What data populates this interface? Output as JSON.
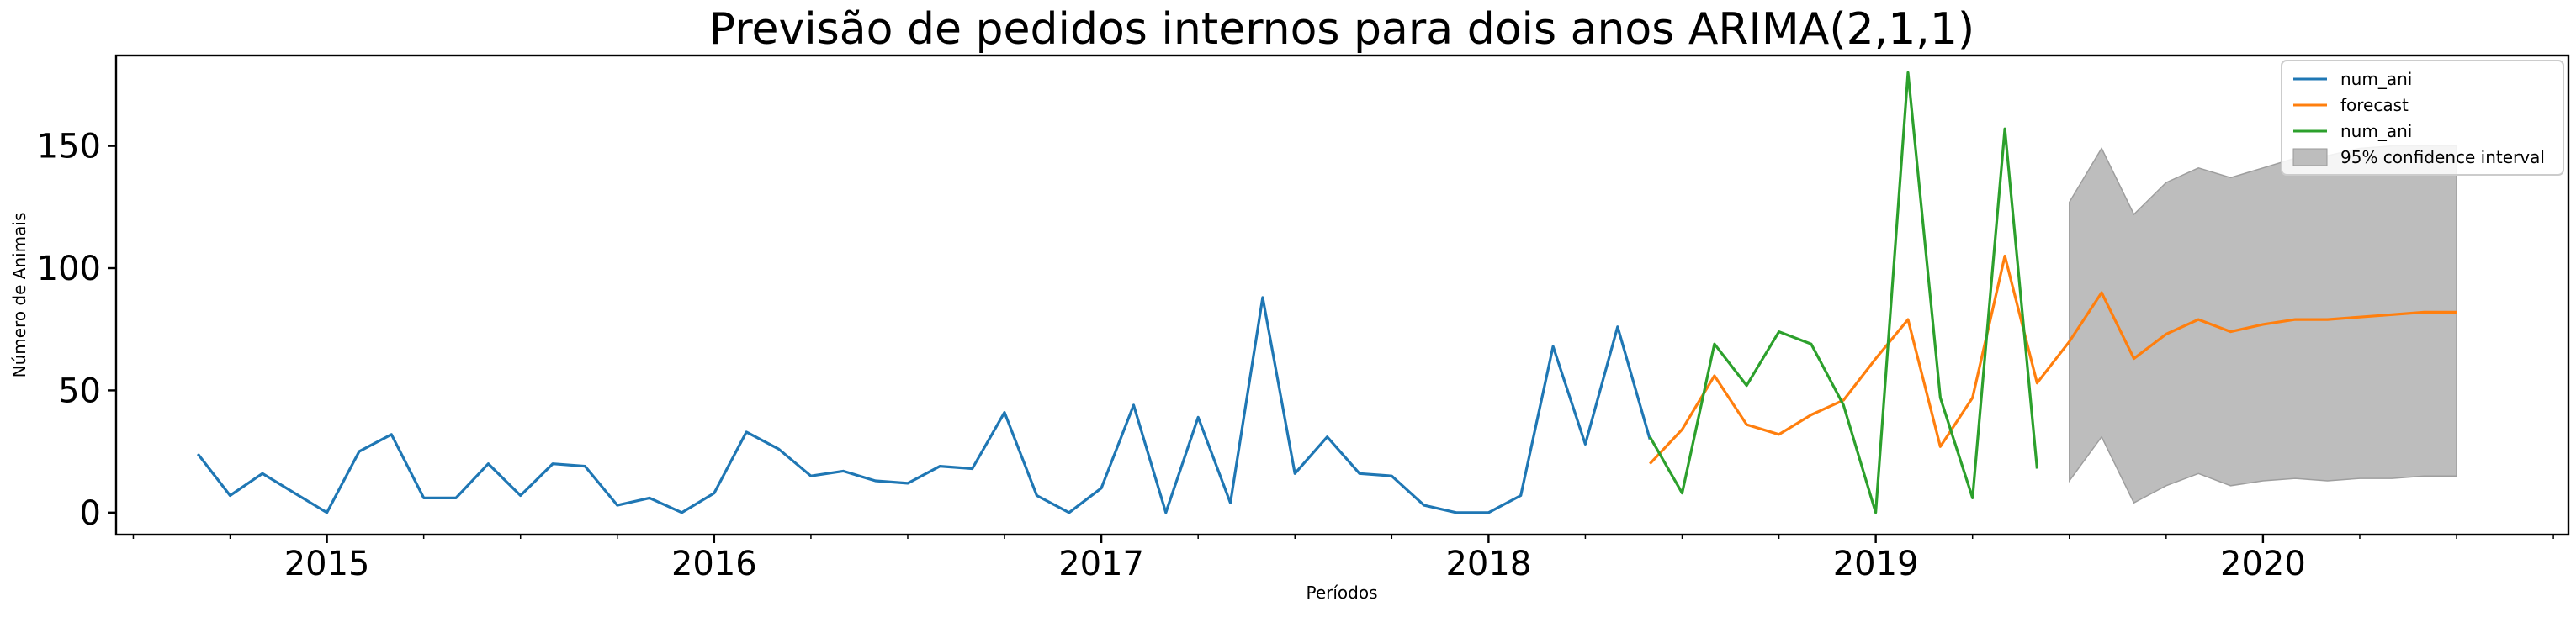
{
  "chart_data": {
    "type": "line",
    "title": "Previsão de pedidos internos para dois anos ARIMA(2,1,1)",
    "xlabel": "Períodos",
    "ylabel": "Número de Animais",
    "x_ticks": [
      "2015",
      "2016",
      "2017",
      "2018",
      "2019",
      "2020"
    ],
    "y_ticks": [
      0,
      50,
      100,
      150
    ],
    "xlim": [
      "2014-06-15",
      "2020-10-15"
    ],
    "ylim": [
      -9,
      187
    ],
    "legend_position": "top-right",
    "colors": {
      "num_ani_1": "#1f77b4",
      "forecast": "#ff7f0e",
      "num_ani_2": "#2ca02c",
      "ci": "#bdbdbd"
    },
    "series": [
      {
        "name": "num_ani",
        "color": "#1f77b4",
        "x": [
          "2014-09",
          "2014-10",
          "2014-11",
          "2014-12",
          "2015-01",
          "2015-02",
          "2015-03",
          "2015-04",
          "2015-05",
          "2015-06",
          "2015-07",
          "2015-08",
          "2015-09",
          "2015-10",
          "2015-11",
          "2015-12",
          "2016-01",
          "2016-02",
          "2016-03",
          "2016-04",
          "2016-05",
          "2016-06",
          "2016-07",
          "2016-08",
          "2016-09",
          "2016-10",
          "2016-11",
          "2016-12",
          "2017-01",
          "2017-02",
          "2017-03",
          "2017-04",
          "2017-05",
          "2017-06",
          "2017-07",
          "2017-08",
          "2017-09",
          "2017-10",
          "2017-11",
          "2017-12",
          "2018-01",
          "2018-02",
          "2018-03",
          "2018-04",
          "2018-05",
          "2018-06"
        ],
        "values": [
          24,
          7,
          16,
          8,
          0,
          25,
          32,
          6,
          6,
          20,
          7,
          20,
          19,
          3,
          6,
          0,
          8,
          33,
          26,
          15,
          17,
          13,
          12,
          19,
          18,
          41,
          7,
          0,
          10,
          44,
          0,
          39,
          4,
          88,
          16,
          31,
          16,
          15,
          3,
          0,
          0,
          7,
          68,
          28,
          76,
          30
        ]
      },
      {
        "name": "forecast",
        "color": "#ff7f0e",
        "x": [
          "2018-06",
          "2018-07",
          "2018-08",
          "2018-09",
          "2018-10",
          "2018-11",
          "2018-12",
          "2019-01",
          "2019-02",
          "2019-03",
          "2019-04",
          "2019-05",
          "2019-06",
          "2019-07",
          "2019-08",
          "2019-09",
          "2019-10",
          "2019-11",
          "2019-12",
          "2020-01",
          "2020-02",
          "2020-03",
          "2020-04",
          "2020-05",
          "2020-06",
          "2020-07"
        ],
        "values": [
          20,
          34,
          56,
          36,
          32,
          40,
          46,
          63,
          79,
          27,
          47,
          105,
          53,
          70,
          90,
          63,
          73,
          79,
          74,
          77,
          79,
          79,
          80,
          81,
          82,
          82
        ]
      },
      {
        "name": "num_ani",
        "color": "#2ca02c",
        "x": [
          "2018-06",
          "2018-07",
          "2018-08",
          "2018-09",
          "2018-10",
          "2018-11",
          "2018-12",
          "2019-01",
          "2019-02",
          "2019-03",
          "2019-04",
          "2019-05",
          "2019-06"
        ],
        "values": [
          31,
          8,
          69,
          52,
          74,
          69,
          44,
          0,
          180,
          47,
          6,
          157,
          18
        ]
      }
    ],
    "confidence_interval": {
      "name": "95% confidence interval",
      "x": [
        "2019-07",
        "2019-08",
        "2019-09",
        "2019-10",
        "2019-11",
        "2019-12",
        "2020-01",
        "2020-02",
        "2020-03",
        "2020-04",
        "2020-05",
        "2020-06",
        "2020-07"
      ],
      "lower": [
        13,
        31,
        4,
        11,
        16,
        11,
        13,
        14,
        13,
        14,
        14,
        15,
        15
      ],
      "upper": [
        127,
        149,
        122,
        135,
        141,
        137,
        141,
        145,
        146,
        149,
        150,
        150,
        150
      ]
    }
  }
}
